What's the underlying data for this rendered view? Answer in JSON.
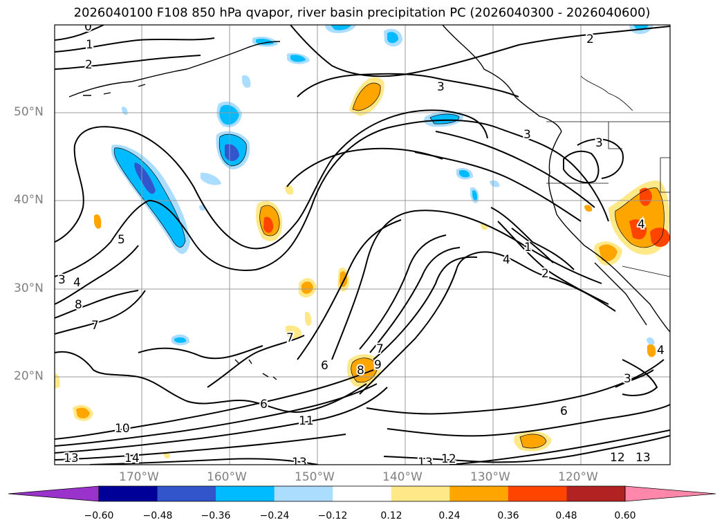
{
  "title": "2026040100 F108 850 hPa qvapor, river basin precipitation PC (2026040300 - 2026040600)",
  "lat_labels": [
    "50°N",
    "40°N",
    "30°N",
    "20°N"
  ],
  "lon_labels": [
    "170°W",
    "160°W",
    "150°W",
    "140°W",
    "130°W",
    "120°W"
  ],
  "contour_labels": [
    "0",
    "1",
    "2",
    "3",
    "3",
    "3",
    "4",
    "5",
    "3",
    "4",
    "8",
    "7",
    "7",
    "6",
    "7",
    "9",
    "8",
    "6",
    "10",
    "11",
    "13",
    "14",
    "13",
    "13",
    "12",
    "12",
    "13",
    "2",
    "1",
    "2",
    "4",
    "3",
    "6",
    "4"
  ],
  "colorbar": {
    "ticks": [
      "−0.60",
      "−0.48",
      "−0.36",
      "−0.24",
      "−0.12",
      "0.12",
      "0.24",
      "0.36",
      "0.48",
      "0.60"
    ],
    "colors": [
      "#9933cc",
      "#000099",
      "#3355cc",
      "#00bbff",
      "#aaddff",
      "#ffffff",
      "#ffe888",
      "#ffa500",
      "#ff4400",
      "#b22222",
      "#ff88aa"
    ]
  },
  "colors": {
    "frame": "#000000",
    "grid": "#999999",
    "coast": "#000000",
    "tick_label": "#808080"
  }
}
